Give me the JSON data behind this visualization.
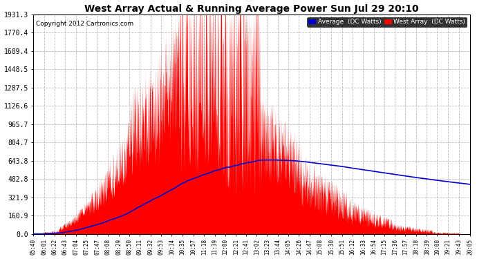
{
  "title": "West Array Actual & Running Average Power Sun Jul 29 20:10",
  "copyright": "Copyright 2012 Cartronics.com",
  "legend_avg": "Average  (DC Watts)",
  "legend_west": "West Array  (DC Watts)",
  "y_tick_labels": [
    "0.0",
    "160.9",
    "321.9",
    "482.8",
    "643.8",
    "804.7",
    "965.7",
    "1126.6",
    "1287.5",
    "1448.5",
    "1609.4",
    "1770.4",
    "1931.3"
  ],
  "y_tick_values": [
    0.0,
    160.9,
    321.9,
    482.8,
    643.8,
    804.7,
    965.7,
    1126.6,
    1287.5,
    1448.5,
    1609.4,
    1770.4,
    1931.3
  ],
  "y_max": 1931.3,
  "bg_color": "#ffffff",
  "grid_color": "#bbbbbb",
  "fill_color": "#ff0000",
  "avg_line_color": "#0000cc",
  "x_tick_labels": [
    "05:40",
    "06:01",
    "06:22",
    "06:43",
    "07:04",
    "07:25",
    "07:47",
    "08:08",
    "08:29",
    "08:50",
    "09:11",
    "09:32",
    "09:53",
    "10:14",
    "10:35",
    "10:57",
    "11:18",
    "11:39",
    "12:00",
    "12:21",
    "12:41",
    "13:02",
    "13:23",
    "13:44",
    "14:05",
    "14:26",
    "14:47",
    "15:08",
    "15:30",
    "15:51",
    "16:12",
    "16:33",
    "16:54",
    "17:15",
    "17:36",
    "17:57",
    "18:18",
    "18:39",
    "19:00",
    "19:21",
    "19:43",
    "20:05"
  ]
}
